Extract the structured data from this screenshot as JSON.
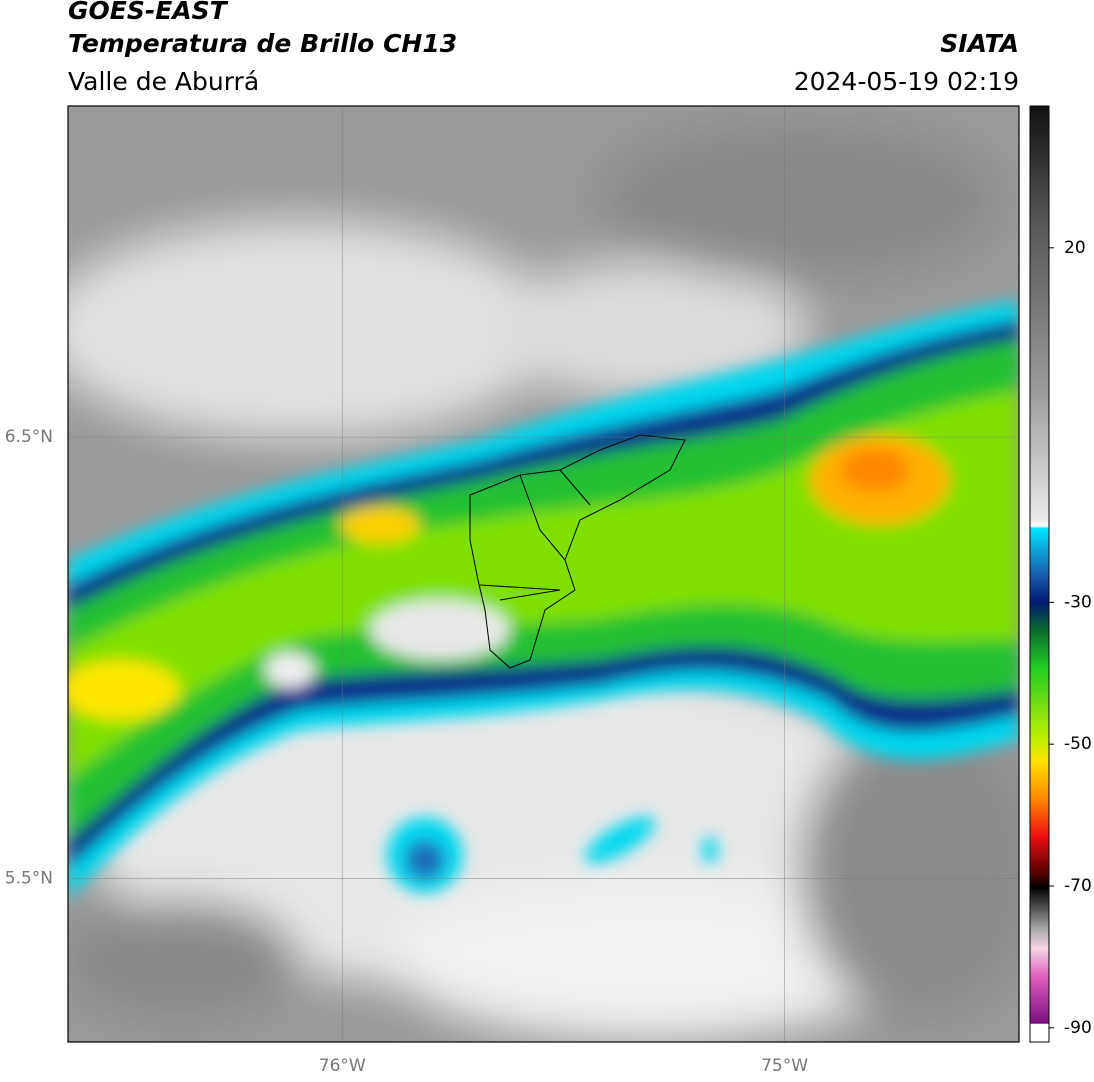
{
  "header": {
    "title": "GOES-EAST",
    "subtitle": "Temperatura de Brillo CH13",
    "region": "Valle de Aburrá",
    "source": "SIATA",
    "datetime": "2024-05-19 02:19"
  },
  "map": {
    "xlim": [
      -76.62,
      -74.47
    ],
    "ylim": [
      5.13,
      7.25
    ],
    "xticks": [
      {
        "value": -76,
        "label": "76°W"
      },
      {
        "value": -75,
        "label": "75°W"
      }
    ],
    "yticks": [
      {
        "value": 6.5,
        "label": "6.5°N"
      },
      {
        "value": 5.5,
        "label": "5.5°N"
      }
    ]
  },
  "colorbar": {
    "lim": [
      -92,
      40
    ],
    "ticks": [
      20,
      -30,
      -50,
      -70,
      -90
    ]
  }
}
